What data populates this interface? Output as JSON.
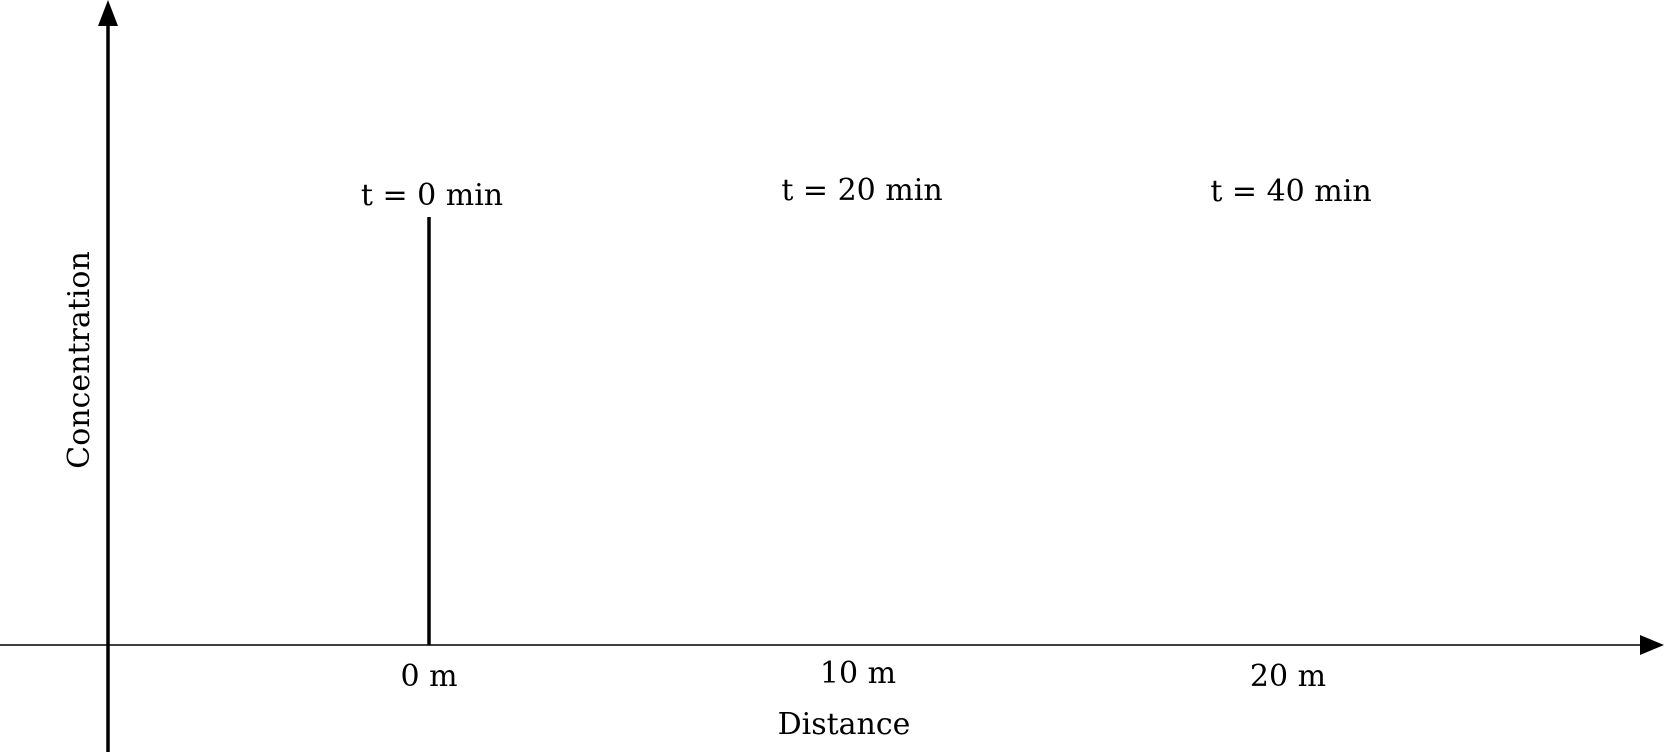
{
  "axes": {
    "x_label": "Distance",
    "y_label": "Concentration"
  },
  "positions": [
    "0 m",
    "10 m",
    "20 m"
  ],
  "times": [
    "t = 0 min",
    "t = 20 min",
    "t = 40 min"
  ],
  "colors": {
    "ink": "#000000",
    "background": "#ffffff"
  }
}
